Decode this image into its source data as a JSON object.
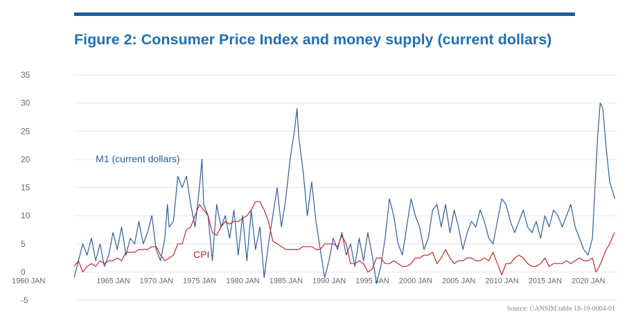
{
  "colors": {
    "rule": "#1f5a99",
    "title": "#1f6fb5",
    "m1": "#2e5d9a",
    "cpi": "#c0282a",
    "grid": "#e6e6e6",
    "axis_text": "#666666"
  },
  "figure": {
    "title": "Figure 2: Consumer Price Index and money supply (current dollars)",
    "source": "Source: CANSIM table 18-10-0004-01"
  },
  "chart_data": {
    "type": "line",
    "title": "Figure 2: Consumer Price Index and money supply (current dollars)",
    "xlabel": "",
    "ylabel": "",
    "x_range": [
      1960,
      2022.8
    ],
    "x_ticks": [
      "1960 JAN",
      "1965 JAN",
      "1970 JAN",
      "1975 JAN",
      "1980 JAN",
      "1985 JAN",
      "1990 JAN",
      "1995 JAN",
      "2000 JAN",
      "2005 JAN",
      "2010 JAN",
      "2015 JAN",
      "2020 JAN"
    ],
    "ylim": [
      -5,
      35
    ],
    "y_ticks": [
      "-5",
      "0",
      "5",
      "10",
      "15",
      "20",
      "25",
      "30",
      "35"
    ],
    "grid": true,
    "series": [
      {
        "name": "M1 (current dollars)",
        "label_at": [
          1962.5,
          19.5
        ],
        "points": [
          [
            1960.0,
            -1
          ],
          [
            1960.5,
            2
          ],
          [
            1961.0,
            5
          ],
          [
            1961.5,
            3
          ],
          [
            1962.0,
            6
          ],
          [
            1962.5,
            2
          ],
          [
            1963.0,
            5
          ],
          [
            1963.5,
            1
          ],
          [
            1964.0,
            3
          ],
          [
            1964.5,
            7
          ],
          [
            1965.0,
            4
          ],
          [
            1965.5,
            8
          ],
          [
            1966.0,
            3
          ],
          [
            1966.5,
            6
          ],
          [
            1967.0,
            5
          ],
          [
            1967.5,
            9
          ],
          [
            1968.0,
            5
          ],
          [
            1968.5,
            7
          ],
          [
            1969.0,
            10
          ],
          [
            1969.5,
            4
          ],
          [
            1970.0,
            2
          ],
          [
            1970.5,
            6
          ],
          [
            1970.8,
            12
          ],
          [
            1971.0,
            8
          ],
          [
            1971.5,
            9
          ],
          [
            1972.0,
            17
          ],
          [
            1972.5,
            15
          ],
          [
            1973.0,
            17
          ],
          [
            1973.5,
            12
          ],
          [
            1974.0,
            8
          ],
          [
            1974.5,
            15
          ],
          [
            1974.8,
            20
          ],
          [
            1975.0,
            12
          ],
          [
            1975.5,
            10
          ],
          [
            1976.0,
            2
          ],
          [
            1976.5,
            12
          ],
          [
            1977.0,
            8
          ],
          [
            1977.5,
            10
          ],
          [
            1978.0,
            6
          ],
          [
            1978.5,
            11
          ],
          [
            1979.0,
            3
          ],
          [
            1979.5,
            10
          ],
          [
            1980.0,
            2
          ],
          [
            1980.5,
            11
          ],
          [
            1981.0,
            4
          ],
          [
            1981.5,
            8
          ],
          [
            1982.0,
            -1
          ],
          [
            1982.5,
            5
          ],
          [
            1983.0,
            10
          ],
          [
            1983.5,
            15
          ],
          [
            1984.0,
            8
          ],
          [
            1984.5,
            13
          ],
          [
            1985.0,
            20
          ],
          [
            1985.5,
            25
          ],
          [
            1985.8,
            29
          ],
          [
            1986.0,
            24
          ],
          [
            1986.5,
            18
          ],
          [
            1987.0,
            10
          ],
          [
            1987.5,
            16
          ],
          [
            1988.0,
            9
          ],
          [
            1988.5,
            4
          ],
          [
            1989.0,
            -1
          ],
          [
            1989.5,
            2
          ],
          [
            1990.0,
            6
          ],
          [
            1990.5,
            4
          ],
          [
            1991.0,
            7
          ],
          [
            1991.5,
            3
          ],
          [
            1992.0,
            5
          ],
          [
            1992.5,
            1
          ],
          [
            1993.0,
            6
          ],
          [
            1993.5,
            2
          ],
          [
            1994.0,
            7
          ],
          [
            1994.5,
            3
          ],
          [
            1995.0,
            -2
          ],
          [
            1995.5,
            1
          ],
          [
            1996.0,
            6
          ],
          [
            1996.5,
            13
          ],
          [
            1997.0,
            10
          ],
          [
            1997.5,
            5
          ],
          [
            1998.0,
            3
          ],
          [
            1998.5,
            8
          ],
          [
            1999.0,
            13
          ],
          [
            1999.5,
            10
          ],
          [
            2000.0,
            8
          ],
          [
            2000.5,
            4
          ],
          [
            2001.0,
            6
          ],
          [
            2001.5,
            11
          ],
          [
            2002.0,
            12
          ],
          [
            2002.5,
            8
          ],
          [
            2003.0,
            12
          ],
          [
            2003.5,
            7
          ],
          [
            2004.0,
            11
          ],
          [
            2004.5,
            8
          ],
          [
            2005.0,
            4
          ],
          [
            2005.5,
            7
          ],
          [
            2006.0,
            9
          ],
          [
            2006.5,
            8
          ],
          [
            2007.0,
            11
          ],
          [
            2007.5,
            9
          ],
          [
            2008.0,
            6
          ],
          [
            2008.5,
            5
          ],
          [
            2009.0,
            9
          ],
          [
            2009.5,
            13
          ],
          [
            2010.0,
            12
          ],
          [
            2010.5,
            9
          ],
          [
            2011.0,
            7
          ],
          [
            2011.5,
            9
          ],
          [
            2012.0,
            11
          ],
          [
            2012.5,
            8
          ],
          [
            2013.0,
            7
          ],
          [
            2013.5,
            9
          ],
          [
            2014.0,
            6
          ],
          [
            2014.5,
            10
          ],
          [
            2015.0,
            8
          ],
          [
            2015.5,
            11
          ],
          [
            2016.0,
            10
          ],
          [
            2016.5,
            8
          ],
          [
            2017.0,
            10
          ],
          [
            2017.5,
            12
          ],
          [
            2018.0,
            8
          ],
          [
            2018.5,
            6
          ],
          [
            2019.0,
            4
          ],
          [
            2019.5,
            3
          ],
          [
            2020.0,
            6
          ],
          [
            2020.3,
            15
          ],
          [
            2020.6,
            24
          ],
          [
            2020.9,
            30
          ],
          [
            2021.2,
            29
          ],
          [
            2021.6,
            22
          ],
          [
            2022.0,
            16
          ],
          [
            2022.4,
            14
          ],
          [
            2022.6,
            13
          ]
        ]
      },
      {
        "name": "CPI",
        "label_at": [
          1973.8,
          2.5
        ],
        "points": [
          [
            1960.0,
            1
          ],
          [
            1960.5,
            2
          ],
          [
            1961.0,
            0
          ],
          [
            1961.5,
            1
          ],
          [
            1962.0,
            1.5
          ],
          [
            1962.5,
            1
          ],
          [
            1963.0,
            2
          ],
          [
            1963.5,
            1.5
          ],
          [
            1964.0,
            2
          ],
          [
            1964.5,
            2
          ],
          [
            1965.0,
            2.5
          ],
          [
            1965.5,
            2
          ],
          [
            1966.0,
            3.5
          ],
          [
            1966.5,
            3.5
          ],
          [
            1967.0,
            3.5
          ],
          [
            1967.5,
            4
          ],
          [
            1968.0,
            4
          ],
          [
            1968.5,
            4
          ],
          [
            1969.0,
            4.5
          ],
          [
            1969.5,
            4.5
          ],
          [
            1970.0,
            3
          ],
          [
            1970.5,
            2
          ],
          [
            1971.0,
            2.5
          ],
          [
            1971.5,
            3
          ],
          [
            1972.0,
            5
          ],
          [
            1972.5,
            5
          ],
          [
            1973.0,
            7.5
          ],
          [
            1973.5,
            8
          ],
          [
            1974.0,
            10
          ],
          [
            1974.5,
            12
          ],
          [
            1975.0,
            11
          ],
          [
            1975.5,
            10
          ],
          [
            1976.0,
            7
          ],
          [
            1976.5,
            6.5
          ],
          [
            1977.0,
            8
          ],
          [
            1977.5,
            9
          ],
          [
            1978.0,
            8.5
          ],
          [
            1978.5,
            9
          ],
          [
            1979.0,
            9
          ],
          [
            1979.5,
            9.5
          ],
          [
            1980.0,
            10
          ],
          [
            1980.5,
            11
          ],
          [
            1981.0,
            12.5
          ],
          [
            1981.5,
            12.5
          ],
          [
            1982.0,
            11
          ],
          [
            1982.5,
            9
          ],
          [
            1983.0,
            5.5
          ],
          [
            1983.5,
            5
          ],
          [
            1984.0,
            4.5
          ],
          [
            1984.5,
            4
          ],
          [
            1985.0,
            4
          ],
          [
            1985.5,
            4
          ],
          [
            1986.0,
            4
          ],
          [
            1986.5,
            4.5
          ],
          [
            1987.0,
            4.5
          ],
          [
            1987.5,
            4.5
          ],
          [
            1988.0,
            4
          ],
          [
            1988.5,
            4
          ],
          [
            1989.0,
            5
          ],
          [
            1989.5,
            5
          ],
          [
            1990.0,
            5
          ],
          [
            1990.5,
            4.5
          ],
          [
            1991.0,
            6.5
          ],
          [
            1991.5,
            5
          ],
          [
            1992.0,
            1.5
          ],
          [
            1992.5,
            1.5
          ],
          [
            1993.0,
            2
          ],
          [
            1993.5,
            1.5
          ],
          [
            1994.0,
            0
          ],
          [
            1994.5,
            0.5
          ],
          [
            1995.0,
            2.5
          ],
          [
            1995.5,
            2.5
          ],
          [
            1996.0,
            1.5
          ],
          [
            1996.5,
            1.5
          ],
          [
            1997.0,
            2
          ],
          [
            1997.5,
            1.5
          ],
          [
            1998.0,
            1
          ],
          [
            1998.5,
            1
          ],
          [
            1999.0,
            1.5
          ],
          [
            1999.5,
            2.5
          ],
          [
            2000.0,
            2.5
          ],
          [
            2000.5,
            3
          ],
          [
            2001.0,
            3
          ],
          [
            2001.5,
            3.5
          ],
          [
            2002.0,
            1.5
          ],
          [
            2002.5,
            2.5
          ],
          [
            2003.0,
            4
          ],
          [
            2003.5,
            2.5
          ],
          [
            2004.0,
            1.5
          ],
          [
            2004.5,
            2
          ],
          [
            2005.0,
            2
          ],
          [
            2005.5,
            2.5
          ],
          [
            2006.0,
            2.5
          ],
          [
            2006.5,
            2
          ],
          [
            2007.0,
            2
          ],
          [
            2007.5,
            2.5
          ],
          [
            2008.0,
            2
          ],
          [
            2008.5,
            3.5
          ],
          [
            2009.0,
            1.5
          ],
          [
            2009.5,
            -0.5
          ],
          [
            2010.0,
            1.5
          ],
          [
            2010.5,
            1.5
          ],
          [
            2011.0,
            2.5
          ],
          [
            2011.5,
            3
          ],
          [
            2012.0,
            2.5
          ],
          [
            2012.5,
            1.5
          ],
          [
            2013.0,
            1
          ],
          [
            2013.5,
            1
          ],
          [
            2014.0,
            1.5
          ],
          [
            2014.5,
            2.5
          ],
          [
            2015.0,
            1
          ],
          [
            2015.5,
            1.5
          ],
          [
            2016.0,
            1.5
          ],
          [
            2016.5,
            1.5
          ],
          [
            2017.0,
            2
          ],
          [
            2017.5,
            1.5
          ],
          [
            2018.0,
            2
          ],
          [
            2018.5,
            2.5
          ],
          [
            2019.0,
            2
          ],
          [
            2019.5,
            2
          ],
          [
            2020.0,
            2.5
          ],
          [
            2020.4,
            0
          ],
          [
            2020.8,
            1
          ],
          [
            2021.2,
            2.5
          ],
          [
            2021.6,
            4
          ],
          [
            2022.0,
            5
          ],
          [
            2022.4,
            6.5
          ],
          [
            2022.6,
            7
          ]
        ]
      }
    ]
  }
}
